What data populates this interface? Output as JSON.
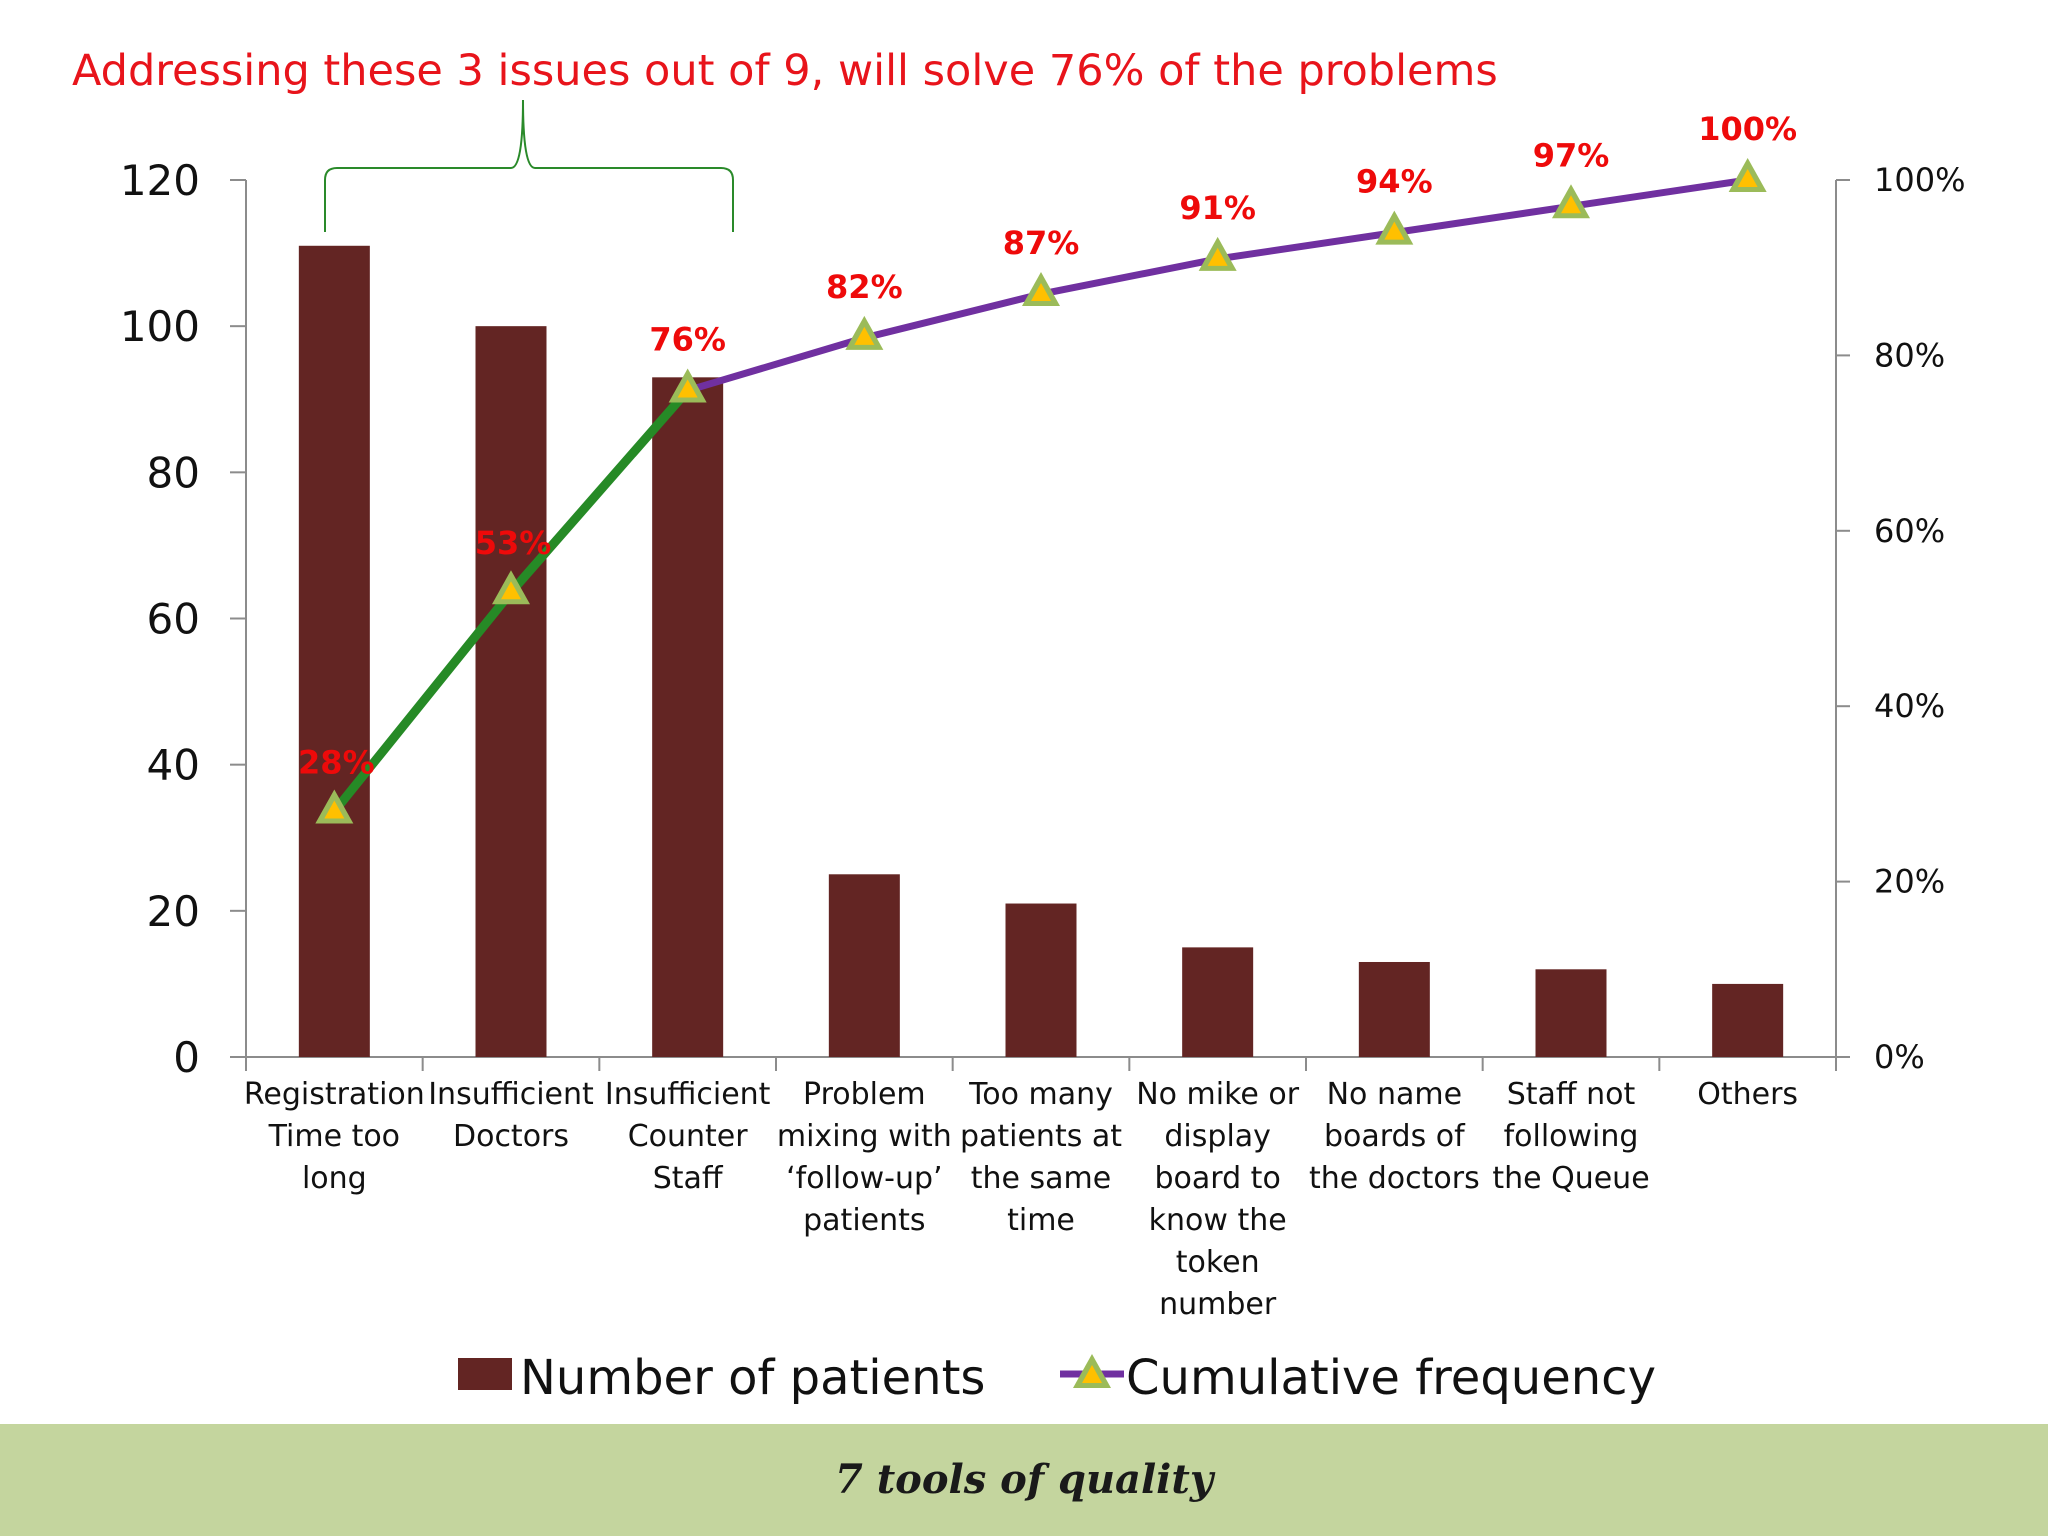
{
  "annotation": "Addressing these 3 issues out of 9,  will solve 76% of the problems",
  "footer_text": "7 tools of quality",
  "colors": {
    "bar": "#632523",
    "line_top": "#268a26",
    "line_rest": "#7030a0",
    "marker_outer": "#9bbb59",
    "marker_inner": "#ffc000",
    "annotation": "#e8141b",
    "bracket": "#2a8a2a",
    "footer": "#c4d59e"
  },
  "chart_data": {
    "type": "bar",
    "categories": [
      [
        "Registration",
        "Time  too",
        "long"
      ],
      [
        "Insufficient",
        "Doctors"
      ],
      [
        "Insufficient",
        "Counter",
        "Staff"
      ],
      [
        "Problem",
        "mixing with",
        "‘follow-up’",
        "patients"
      ],
      [
        "Too many",
        "patients at",
        "the same",
        "time"
      ],
      [
        "No mike or",
        "display",
        "board to",
        "know the",
        "token",
        "number"
      ],
      [
        "No name",
        "boards of",
        "the doctors"
      ],
      [
        "Staff not",
        "following",
        "the Queue"
      ],
      [
        "Others"
      ]
    ],
    "series": [
      {
        "name": "Number of patients",
        "type": "bar",
        "axis": "left",
        "values": [
          111,
          100,
          93,
          25,
          21,
          15,
          13,
          12,
          10
        ]
      },
      {
        "name": "Cumulative frequency",
        "type": "line",
        "axis": "right",
        "values": [
          28,
          53,
          76,
          82,
          87,
          91,
          94,
          97,
          100
        ],
        "labels": [
          "28%",
          "53%",
          "76%",
          "82%",
          "87%",
          "91%",
          "94%",
          "97%",
          "100%"
        ],
        "highlight_first": 3
      }
    ],
    "y_left": {
      "ylim": [
        0,
        120
      ],
      "ticks": [
        "0",
        "20",
        "40",
        "60",
        "80",
        "100",
        "120"
      ]
    },
    "y_right": {
      "ylim": [
        0,
        100
      ],
      "ticks": [
        "0%",
        "20%",
        "40%",
        "60%",
        "80%",
        "100%"
      ]
    },
    "grid": false,
    "legend_position": "bottom"
  }
}
